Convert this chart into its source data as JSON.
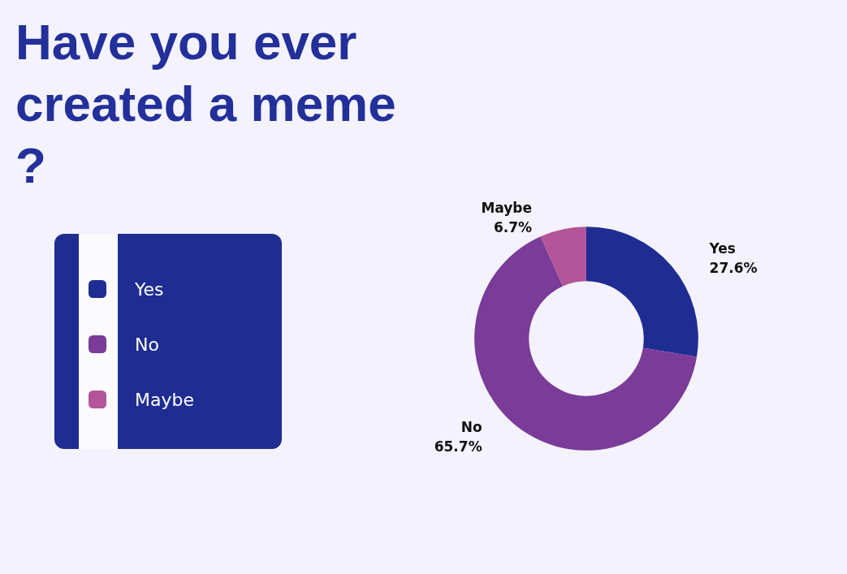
{
  "chart_data": {
    "type": "donut",
    "title": "Have you ever created a meme?",
    "categories": [
      "Yes",
      "No",
      "Maybe"
    ],
    "values": [
      27.6,
      65.7,
      6.7
    ],
    "colors": [
      "#1f2d93",
      "#7b3b98",
      "#b35598"
    ],
    "value_labels": [
      "27.6%",
      "65.7%",
      "6.7%"
    ],
    "legend": "left"
  }
}
